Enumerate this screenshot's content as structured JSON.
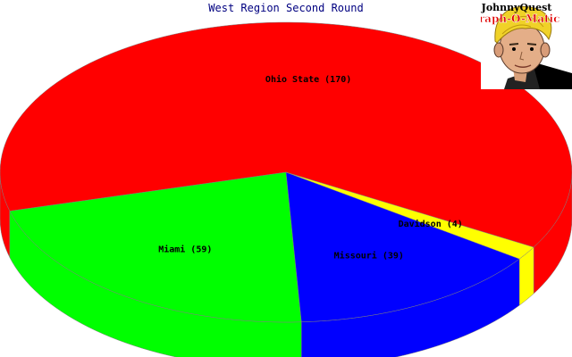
{
  "chart_data": {
    "type": "pie",
    "title": "West Region Second Round",
    "slices": [
      {
        "label": "Ohio State (170)",
        "name": "Ohio State",
        "value": 170,
        "color": "#ff0000"
      },
      {
        "label": "Miami (59)",
        "name": "Miami",
        "value": 59,
        "color": "#00ff00"
      },
      {
        "label": "Missouri (39)",
        "name": "Missouri",
        "value": 39,
        "color": "#0000ff"
      },
      {
        "label": "Davidson (4)",
        "name": "Davidson",
        "value": 4,
        "color": "#ffff00"
      }
    ]
  },
  "logo": {
    "line1": "JohnnyQuest",
    "line2": "Graph-O-Matic"
  }
}
